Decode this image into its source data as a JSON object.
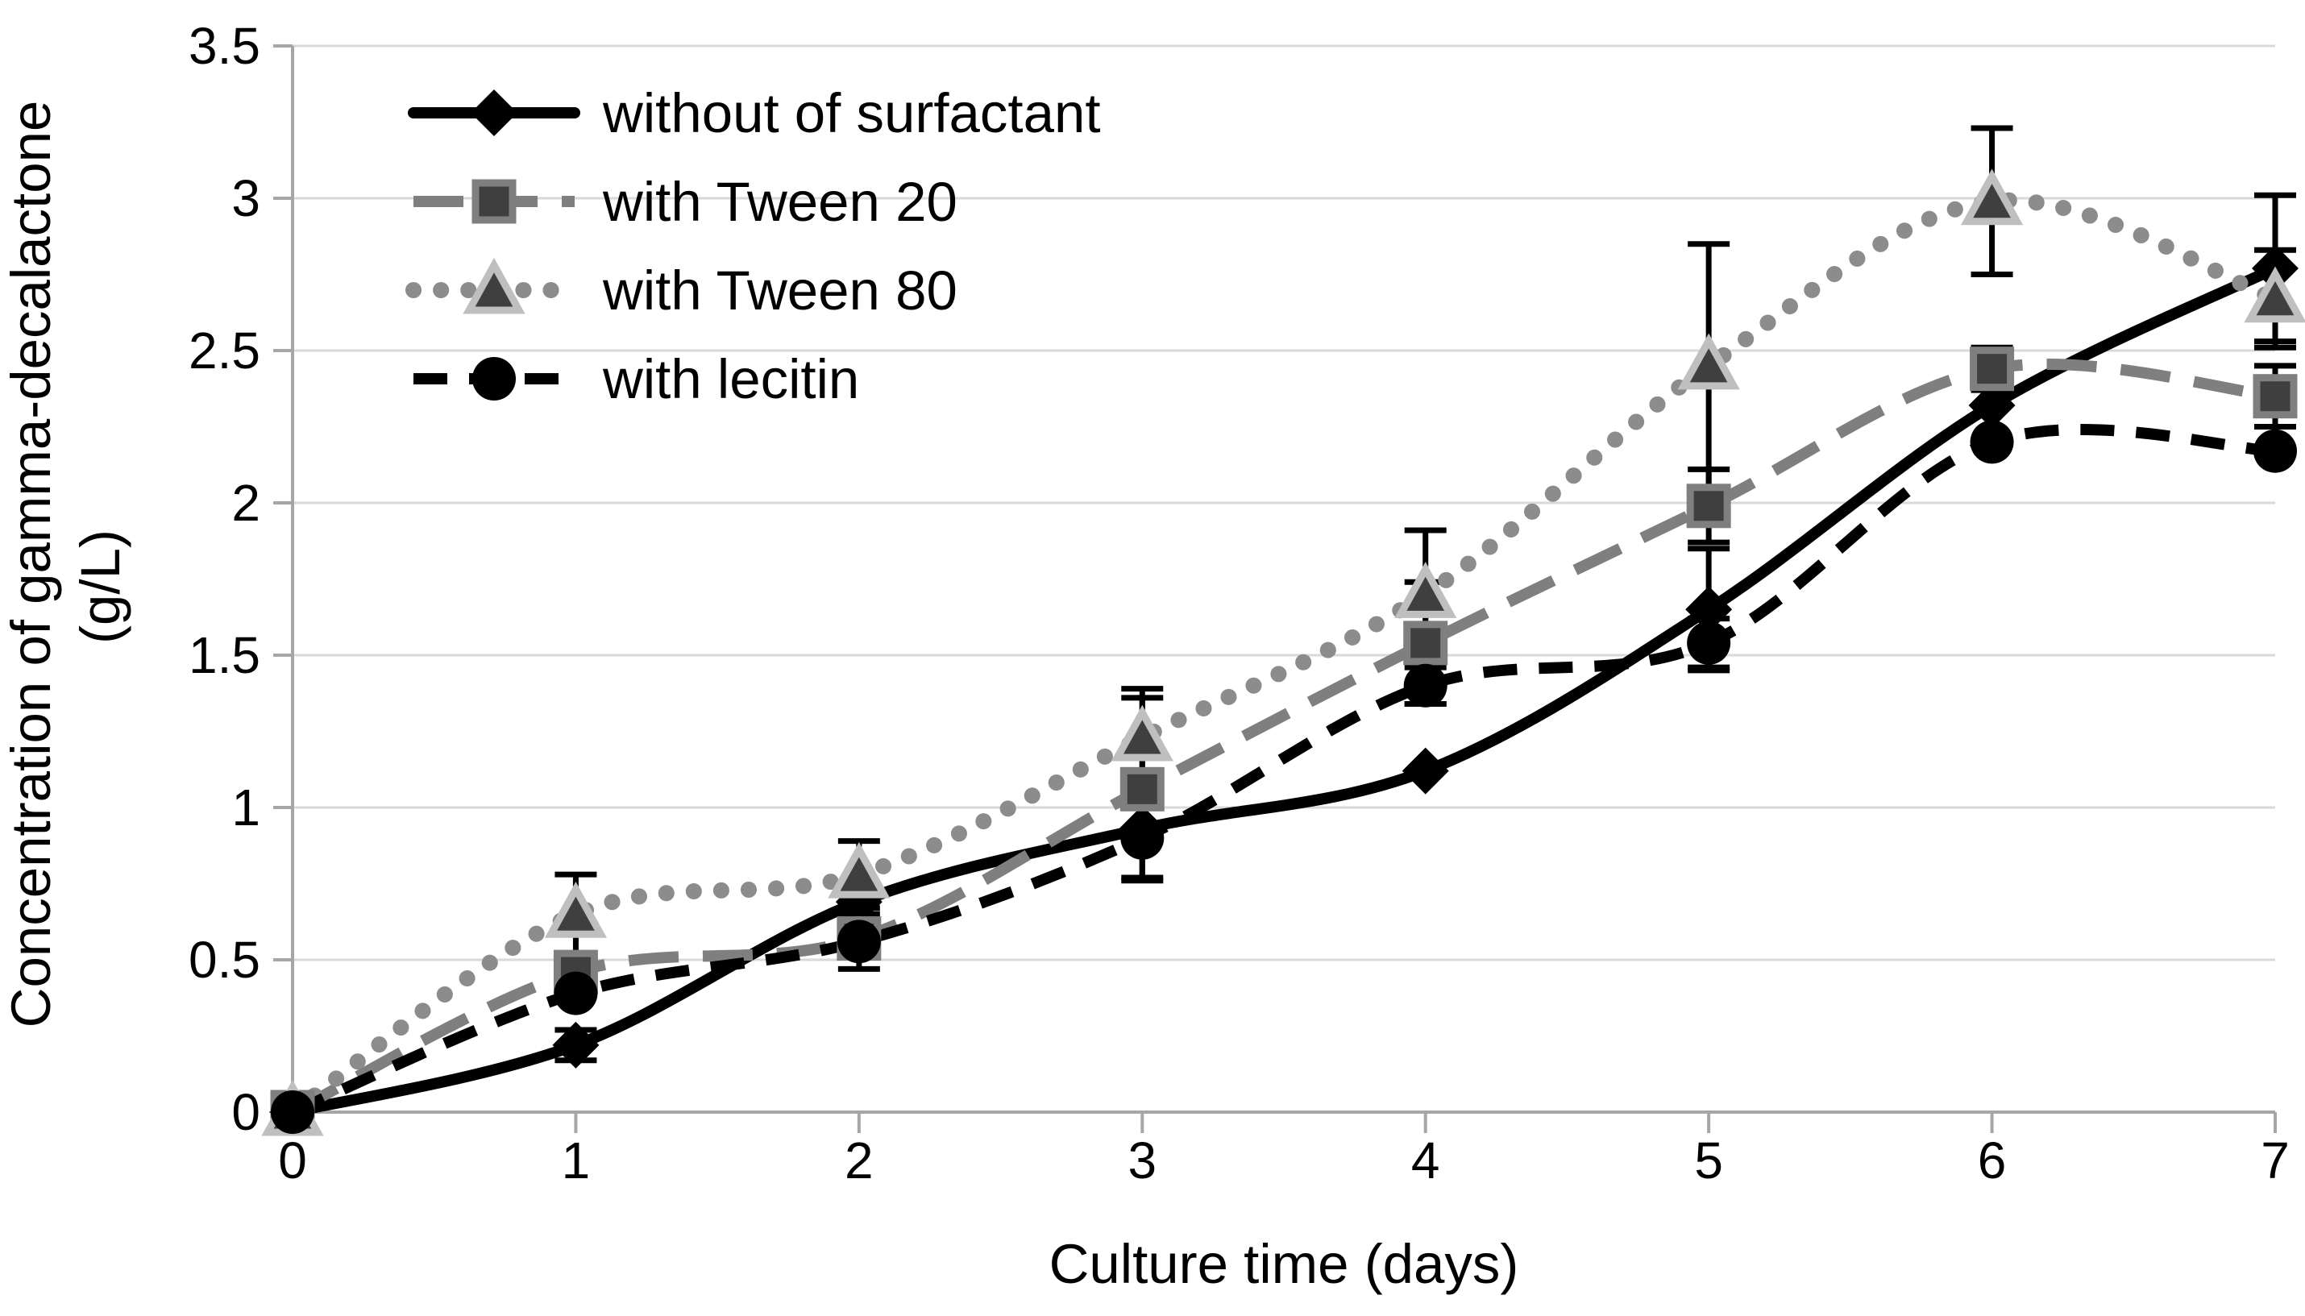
{
  "page": {
    "background": "#ffffff"
  },
  "chart_data": {
    "type": "line",
    "title": "",
    "xlabel": "Culture time (days)",
    "ylabel": "Concentration of gamma-decalactone",
    "ylabel_unit": "(g/L)",
    "x": [
      0,
      1,
      2,
      3,
      4,
      5,
      6,
      7
    ],
    "xlim": [
      0,
      7
    ],
    "ylim": [
      0,
      3.5
    ],
    "yticks": [
      0,
      0.5,
      1,
      1.5,
      2,
      2.5,
      3,
      3.5
    ],
    "ytick_labels": [
      "0",
      "0.5",
      "1",
      "1.5",
      "2",
      "2.5",
      "3",
      "3.5"
    ],
    "xtick_labels": [
      "0",
      "1",
      "2",
      "3",
      "4",
      "5",
      "6",
      "7"
    ],
    "grid": true,
    "legend_position": "inside-top-left",
    "colors": {
      "gridline": "#d9d9d9",
      "axis": "#a6a6a6",
      "series_black": "#000000",
      "series_gray": "#7f7f7f",
      "series_gray_dotted": "#8c8c8c",
      "marker_dark_fill": "#3f3f3f",
      "square_border": "#7f7f7f",
      "triangle_border": "#bfbfbf",
      "error_bar": "#000000"
    },
    "series": [
      {
        "name": "without of surfactant",
        "marker": "diamond",
        "line": "solid",
        "color": "#000000",
        "values": [
          0,
          0.22,
          0.69,
          0.93,
          1.12,
          1.65,
          2.32,
          2.77
        ],
        "err": [
          0,
          0.05,
          0,
          0,
          0,
          0.2,
          0,
          0.24
        ]
      },
      {
        "name": "with Tween 20",
        "marker": "square",
        "line": "long-dash",
        "color": "#7f7f7f",
        "values": [
          0,
          0.46,
          0.57,
          1.06,
          1.54,
          1.99,
          2.44,
          2.35
        ],
        "err": [
          0,
          0,
          0,
          0.3,
          0.2,
          0.12,
          0.07,
          0.1
        ]
      },
      {
        "name": "with Tween 80",
        "marker": "triangle",
        "line": "dotted",
        "color": "#8c8c8c",
        "values": [
          0,
          0.65,
          0.78,
          1.23,
          1.7,
          2.45,
          2.99,
          2.67
        ],
        "err": [
          0,
          0.13,
          0.11,
          0.16,
          0.21,
          0.4,
          0.24,
          0.16
        ]
      },
      {
        "name": "with lecitin",
        "marker": "circle",
        "line": "short-dash",
        "color": "#000000",
        "values": [
          0,
          0.39,
          0.56,
          0.9,
          1.4,
          1.54,
          2.2,
          2.17
        ],
        "err": [
          0,
          0,
          0.09,
          0.13,
          0.06,
          0.08,
          0,
          0
        ]
      }
    ]
  }
}
